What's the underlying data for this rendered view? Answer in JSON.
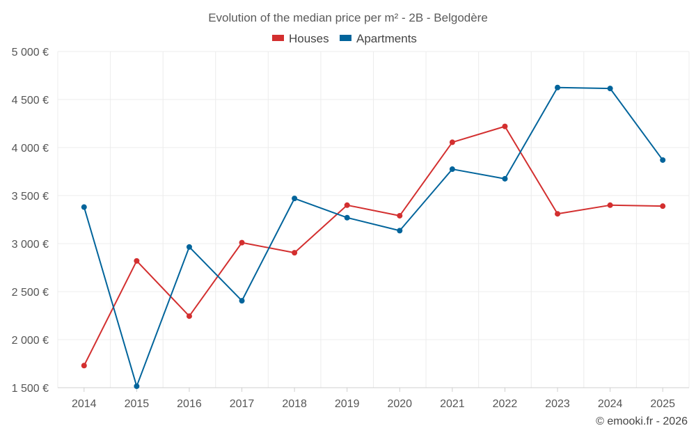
{
  "chart_data": {
    "type": "line",
    "title": "Evolution of the median price per m² - 2B - Belgodère",
    "categories": [
      "2014",
      "2015",
      "2016",
      "2017",
      "2018",
      "2019",
      "2020",
      "2021",
      "2022",
      "2023",
      "2024",
      "2025"
    ],
    "y_tick_labels": [
      "1 500 €",
      "2 000 €",
      "2 500 €",
      "3 000 €",
      "3 500 €",
      "4 000 €",
      "4 500 €",
      "5 000 €"
    ],
    "y_ticks": [
      1500,
      2000,
      2500,
      3000,
      3500,
      4000,
      4500,
      5000
    ],
    "ylim": [
      1500,
      5000
    ],
    "xlabel": "",
    "ylabel": "",
    "grid": true,
    "legend_position": "top-center",
    "series": [
      {
        "name": "Houses",
        "color": "#d32f2f",
        "values": [
          1730,
          2820,
          2245,
          3010,
          2905,
          3400,
          3290,
          4055,
          4220,
          3310,
          3400,
          3390
        ]
      },
      {
        "name": "Apartments",
        "color": "#01649b",
        "values": [
          3380,
          1515,
          2965,
          2405,
          3470,
          3270,
          3135,
          3775,
          3675,
          4625,
          4615,
          3870
        ]
      }
    ],
    "credit": "© emooki.fr - 2026"
  }
}
